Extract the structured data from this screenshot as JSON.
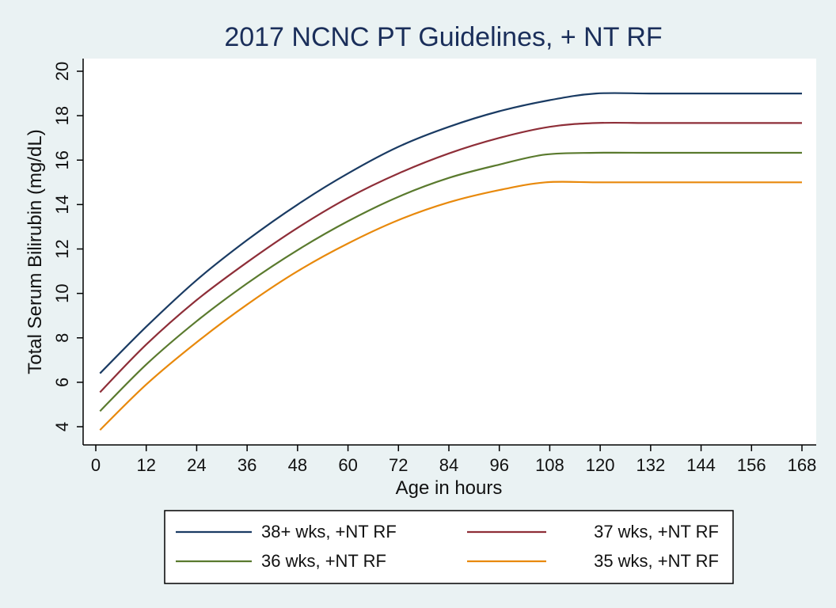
{
  "chart_data": {
    "type": "line",
    "title": "2017 NCNC PT Guidelines, + NT RF",
    "xlabel": "Age in hours",
    "ylabel": "Total Serum Bilirubin (mg/dL)",
    "xlim": [
      0,
      168
    ],
    "ylim": [
      3.5,
      20.6
    ],
    "xticks": [
      0,
      12,
      24,
      36,
      48,
      60,
      72,
      84,
      96,
      108,
      120,
      132,
      144,
      156,
      168
    ],
    "yticks": [
      4,
      6,
      8,
      10,
      12,
      14,
      16,
      18,
      20
    ],
    "grid": false,
    "legend_position": "bottom",
    "series": [
      {
        "name": "38+ wks, +NT RF",
        "color": "#1a3b63",
        "x": [
          1,
          12,
          24,
          36,
          48,
          60,
          72,
          84,
          96,
          108,
          119,
          132,
          144,
          156,
          168
        ],
        "y": [
          6.4,
          8.5,
          10.6,
          12.4,
          14.0,
          15.4,
          16.6,
          17.5,
          18.2,
          18.7,
          19.0,
          19.0,
          19.0,
          19.0,
          19.0
        ]
      },
      {
        "name": "37 wks,  +NT RF",
        "color": "#8e2e38",
        "x": [
          1,
          12,
          24,
          36,
          48,
          60,
          72,
          84,
          96,
          108,
          119,
          132,
          144,
          156,
          168
        ],
        "y": [
          5.55,
          7.7,
          9.7,
          11.4,
          12.95,
          14.3,
          15.4,
          16.3,
          17.0,
          17.5,
          17.67,
          17.67,
          17.67,
          17.67,
          17.67
        ]
      },
      {
        "name": "36 wks,  +NT RF",
        "color": "#5a7a2e",
        "x": [
          1,
          12,
          24,
          36,
          48,
          60,
          72,
          84,
          96,
          107,
          119,
          132,
          144,
          156,
          168
        ],
        "y": [
          4.7,
          6.8,
          8.75,
          10.45,
          11.95,
          13.25,
          14.35,
          15.2,
          15.8,
          16.25,
          16.33,
          16.33,
          16.33,
          16.33,
          16.33
        ]
      },
      {
        "name": "35 wks,  +NT RF",
        "color": "#e8890c",
        "x": [
          1,
          12,
          24,
          36,
          48,
          60,
          72,
          84,
          96,
          107,
          119,
          132,
          144,
          156,
          168
        ],
        "y": [
          3.85,
          5.9,
          7.8,
          9.5,
          11.0,
          12.25,
          13.3,
          14.1,
          14.65,
          15.0,
          15.0,
          15.0,
          15.0,
          15.0,
          15.0
        ]
      }
    ]
  }
}
